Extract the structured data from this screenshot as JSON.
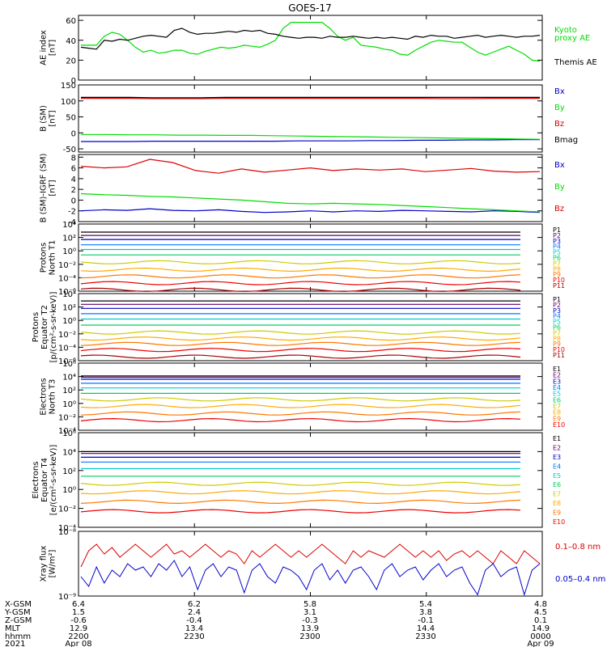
{
  "title": "GOES-17",
  "colors": {
    "black": "#000000",
    "green": "#00dd00",
    "lime": "#33ee33",
    "red": "#dd0000",
    "blue": "#0000cc",
    "p": [
      "#000000",
      "#660066",
      "#0000cc",
      "#0077ff",
      "#00cccc",
      "#00cc66",
      "#cccc00",
      "#ffaa00",
      "#ff7700",
      "#ee0000",
      "#aa0000"
    ]
  },
  "chart_data": [
    {
      "type": "line",
      "name": "ae",
      "ylabel": [
        "AE index",
        "[nT]"
      ],
      "ylim": [
        0,
        65
      ],
      "ticks": [
        "0",
        "20",
        "40",
        "60"
      ],
      "tickvals": [
        0,
        20,
        40,
        60
      ],
      "legend": [
        "Kyoto",
        "proxy AE",
        "Themis AE"
      ],
      "series": [
        {
          "name": "Kyoto proxy AE",
          "color": "green",
          "values": [
            35,
            35,
            35,
            44,
            48,
            46,
            40,
            33,
            28,
            30,
            27,
            28,
            30,
            30,
            27,
            26,
            29,
            31,
            33,
            32,
            33,
            35,
            34,
            33,
            36,
            40,
            52,
            58,
            58,
            58,
            58,
            58,
            52,
            44,
            40,
            43,
            35,
            34,
            33,
            31,
            30,
            26,
            25,
            30,
            34,
            38,
            40,
            39,
            38,
            38,
            33,
            28,
            25,
            28,
            31,
            34,
            30,
            26,
            20,
            19
          ]
        },
        {
          "name": "Themis AE",
          "color": "black",
          "values": [
            33,
            32,
            31,
            40,
            39,
            41,
            40,
            42,
            44,
            45,
            44,
            43,
            50,
            52,
            48,
            46,
            47,
            47,
            48,
            49,
            48,
            50,
            49,
            50,
            47,
            46,
            44,
            43,
            42,
            43,
            43,
            42,
            44,
            43,
            43,
            44,
            43,
            42,
            43,
            42,
            43,
            42,
            41,
            44,
            43,
            45,
            44,
            44,
            42,
            43,
            44,
            45,
            43,
            44,
            45,
            44,
            43,
            44,
            44,
            45
          ]
        }
      ]
    },
    {
      "type": "line",
      "name": "bsm",
      "ylabel": [
        "B (SM)",
        "[nT]"
      ],
      "ylim": [
        -60,
        150
      ],
      "ticks": [
        "-50",
        "0",
        "50",
        "100",
        "150"
      ],
      "tickvals": [
        -50,
        0,
        50,
        100,
        150
      ],
      "legend": [
        "Bx",
        "By",
        "Bz",
        "Bmag"
      ],
      "series": [
        {
          "name": "Bx",
          "color": "blue",
          "values": [
            -27,
            -27,
            -27,
            -26,
            -26,
            -26,
            -26,
            -26,
            -26,
            -25,
            -25,
            -25,
            -24,
            -24,
            -23,
            -23,
            -22,
            -22,
            -21,
            -21
          ]
        },
        {
          "name": "By",
          "color": "green",
          "values": [
            -5,
            -5,
            -6,
            -6,
            -7,
            -7,
            -8,
            -8,
            -9,
            -10,
            -11,
            -12,
            -13,
            -14,
            -15,
            -16,
            -17,
            -18,
            -19,
            -20
          ]
        },
        {
          "name": "Bz",
          "color": "red",
          "values": [
            108,
            108,
            108,
            107,
            107,
            107,
            108,
            108,
            108,
            108,
            108,
            108,
            108,
            108,
            108,
            107,
            107,
            108,
            108,
            108
          ]
        },
        {
          "name": "Bmag",
          "color": "black",
          "values": [
            111,
            111,
            111,
            110,
            110,
            110,
            111,
            111,
            111,
            111,
            111,
            111,
            111,
            111,
            111,
            111,
            111,
            111,
            111,
            111
          ]
        }
      ]
    },
    {
      "type": "line",
      "name": "bigrf",
      "ylabel": [
        "B (SM)-IGRF (SM)",
        "[nT]"
      ],
      "ylim": [
        -4,
        8.5
      ],
      "ticks": [
        "-4",
        "-2",
        "0",
        "2",
        "4",
        "6",
        "8"
      ],
      "tickvals": [
        -4,
        -2,
        0,
        2,
        4,
        6,
        8
      ],
      "legend": [
        "Bx",
        "By",
        "Bz"
      ],
      "series": [
        {
          "name": "Bx",
          "color": "blue",
          "values": [
            -2.0,
            -1.8,
            -1.9,
            -1.6,
            -1.9,
            -2.0,
            -1.8,
            -2.1,
            -2.3,
            -2.2,
            -2.0,
            -2.2,
            -2.0,
            -2.1,
            -1.9,
            -2.0,
            -2.1,
            -2.2,
            -2.0,
            -2.1,
            -2.3
          ]
        },
        {
          "name": "By",
          "color": "green",
          "values": [
            1.2,
            1.0,
            0.9,
            0.7,
            0.6,
            0.4,
            0.2,
            0.0,
            -0.3,
            -0.6,
            -0.7,
            -0.6,
            -0.7,
            -0.8,
            -1.0,
            -1.2,
            -1.4,
            -1.6,
            -1.8,
            -2.0,
            -2.2
          ]
        },
        {
          "name": "Bz",
          "color": "red",
          "values": [
            6.3,
            6.0,
            6.2,
            7.6,
            7.0,
            5.5,
            5.0,
            5.8,
            5.2,
            5.6,
            6.0,
            5.5,
            5.8,
            5.6,
            5.8,
            5.3,
            5.6,
            5.9,
            5.4,
            5.2,
            5.3
          ]
        }
      ]
    },
    {
      "type": "line",
      "name": "protN",
      "ylabel": [
        "Protons",
        "North T1"
      ],
      "log": true,
      "ylim": [
        -6,
        4
      ],
      "ticks": [
        "10⁻⁶",
        "10⁻⁴",
        "10⁻²",
        "10⁰",
        "10²",
        "10⁴"
      ],
      "tickvals": [
        -6,
        -4,
        -2,
        0,
        2,
        4
      ],
      "legend": [
        "P1",
        "P2",
        "P3",
        "P4",
        "P5",
        "P6",
        "P7",
        "P8",
        "P9",
        "P10",
        "P11"
      ],
      "levels": [
        2.8,
        2.3,
        1.7,
        0.9,
        0.2,
        -0.6,
        -1.7,
        -2.8,
        -3.8,
        -4.8,
        -5.8
      ]
    },
    {
      "type": "line",
      "name": "protE",
      "ylabel": [
        "Protons",
        "Equator T2",
        "[p/(cm²-s-sr-keV)]"
      ],
      "log": true,
      "ylim": [
        -6,
        4
      ],
      "ticks": [
        "10⁻⁶",
        "10⁻⁴",
        "10⁻²",
        "10⁰",
        "10²",
        "10⁴"
      ],
      "tickvals": [
        -6,
        -4,
        -2,
        0,
        2,
        4
      ],
      "legend": [
        "P1",
        "P2",
        "P3",
        "P4",
        "P5",
        "P6",
        "P7",
        "P8",
        "P9",
        "P10",
        "P11"
      ],
      "levels": [
        2.9,
        2.4,
        1.8,
        1.0,
        0.2,
        -0.7,
        -1.8,
        -2.7,
        -3.5,
        -4.4,
        -5.4
      ]
    },
    {
      "type": "line",
      "name": "elecN",
      "ylabel": [
        "Electrons",
        "North T3"
      ],
      "log": true,
      "ylim": [
        -4,
        6
      ],
      "ticks": [
        "10⁻⁴",
        "10⁻²",
        "10⁰",
        "10²",
        "10⁴",
        "10⁶"
      ],
      "tickvals": [
        -4,
        -2,
        0,
        2,
        4,
        6
      ],
      "legend": [
        "E1",
        "E2",
        "E3",
        "E4",
        "E5",
        "E6",
        "E7",
        "E8",
        "E9",
        "E10"
      ],
      "levels": [
        4.1,
        3.9,
        3.6,
        3.0,
        2.3,
        1.5,
        0.6,
        -0.4,
        -1.5,
        -2.5
      ]
    },
    {
      "type": "line",
      "name": "elecE",
      "ylabel": [
        "Electrons",
        "Equator T4",
        "[e/(cm²-s-sr-keV)]"
      ],
      "log": true,
      "ylim": [
        -4,
        6
      ],
      "ticks": [
        "10⁻⁴",
        "10⁻²",
        "10⁰",
        "10²",
        "10⁴",
        "10⁶"
      ],
      "tickvals": [
        -4,
        -2,
        0,
        2,
        4,
        6
      ],
      "legend": [
        "E1",
        "E2",
        "E3",
        "E4",
        "E5",
        "E6",
        "E7",
        "E8",
        "E9",
        "E10"
      ],
      "levels": [
        4.0,
        3.8,
        3.4,
        2.9,
        2.2,
        1.4,
        0.6,
        -0.3,
        -1.3,
        -2.3
      ]
    },
    {
      "type": "line",
      "name": "xray",
      "ylabel": [
        "Xray flux",
        "[W/m²]"
      ],
      "log": true,
      "ylim": [
        -9,
        -8
      ],
      "ticks": [
        "10⁻⁹",
        "10⁻⁸"
      ],
      "tickvals": [
        -9,
        -8
      ],
      "legend": [
        "0.1–0.8 nm",
        "0.05–0.4 nm"
      ],
      "series": [
        {
          "name": "0.1–0.8 nm",
          "color": "red",
          "values": [
            -8.55,
            -8.3,
            -8.2,
            -8.35,
            -8.25,
            -8.4,
            -8.3,
            -8.2,
            -8.3,
            -8.4,
            -8.3,
            -8.2,
            -8.35,
            -8.3,
            -8.4,
            -8.3,
            -8.2,
            -8.3,
            -8.4,
            -8.3,
            -8.35,
            -8.5,
            -8.3,
            -8.4,
            -8.3,
            -8.2,
            -8.3,
            -8.4,
            -8.3,
            -8.4,
            -8.3,
            -8.2,
            -8.3,
            -8.4,
            -8.5,
            -8.3,
            -8.4,
            -8.3,
            -8.35,
            -8.4,
            -8.3,
            -8.2,
            -8.3,
            -8.4,
            -8.3,
            -8.4,
            -8.3,
            -8.45,
            -8.35,
            -8.3,
            -8.4,
            -8.3,
            -8.4,
            -8.5,
            -8.3,
            -8.4,
            -8.5,
            -8.3,
            -8.4,
            -8.5
          ]
        },
        {
          "name": "0.05–0.4 nm",
          "color": "blue",
          "values": [
            -8.7,
            -8.85,
            -8.55,
            -8.8,
            -8.6,
            -8.7,
            -8.5,
            -8.6,
            -8.55,
            -8.7,
            -8.5,
            -8.6,
            -8.45,
            -8.7,
            -8.55,
            -8.9,
            -8.6,
            -8.5,
            -8.7,
            -8.55,
            -8.6,
            -8.95,
            -8.6,
            -8.5,
            -8.7,
            -8.8,
            -8.55,
            -8.6,
            -8.7,
            -8.9,
            -8.6,
            -8.5,
            -8.75,
            -8.6,
            -8.8,
            -8.6,
            -8.55,
            -8.7,
            -8.9,
            -8.6,
            -8.5,
            -8.7,
            -8.6,
            -8.55,
            -8.75,
            -8.6,
            -8.5,
            -8.7,
            -8.6,
            -8.55,
            -8.8,
            -8.98,
            -8.6,
            -8.5,
            -8.7,
            -8.6,
            -8.55,
            -8.98,
            -8.6,
            -8.5
          ]
        }
      ]
    }
  ],
  "footer": {
    "labels": [
      "X-GSM",
      "Y-GSM",
      "Z-GSM",
      "MLT",
      "hhmm",
      "2021"
    ],
    "columns": [
      [
        "6.4",
        "1.5",
        "-0.6",
        "12.9",
        "2200",
        "Apr 08"
      ],
      [
        "6.2",
        "2.4",
        "-0.4",
        "13.4",
        "2230",
        ""
      ],
      [
        "5.8",
        "3.1",
        "-0.3",
        "13.9",
        "2300",
        ""
      ],
      [
        "5.4",
        "3.8",
        "-0.1",
        "14.4",
        "2330",
        ""
      ],
      [
        "4.8",
        "4.5",
        "0.1",
        "14.9",
        "0000",
        "Apr 09"
      ]
    ]
  }
}
